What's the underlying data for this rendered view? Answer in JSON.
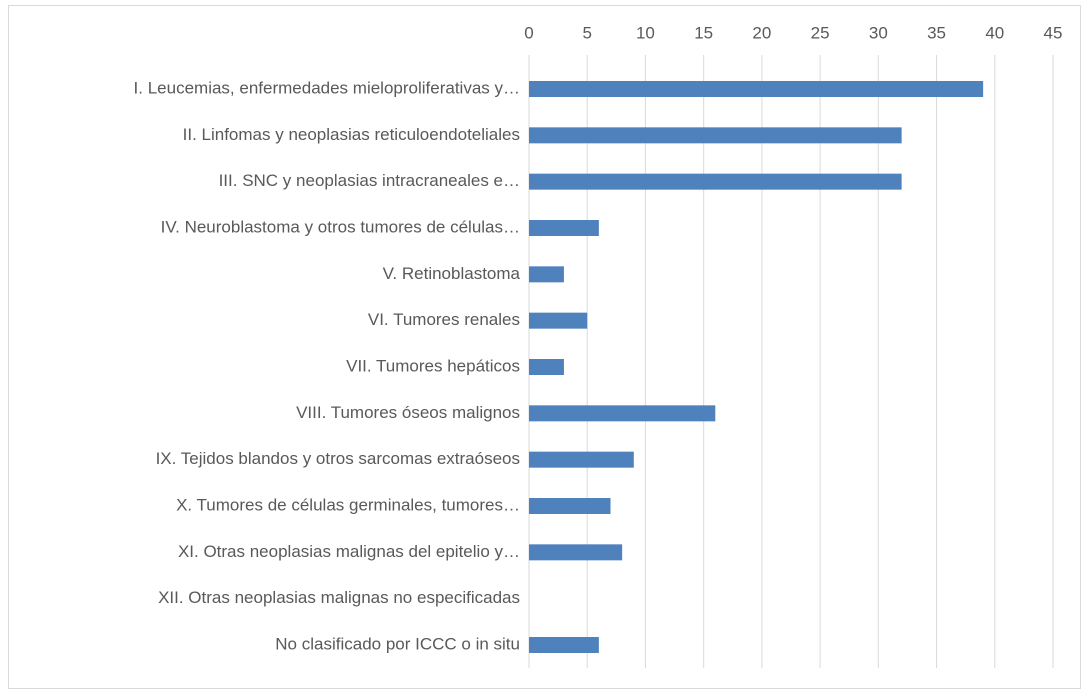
{
  "chart_data": {
    "type": "barh",
    "categories": [
      "I. Leucemias, enfermedades mieloproliferativas y…",
      "II. Linfomas y neoplasias reticuloendoteliales",
      "III. SNC y neoplasias intracraneales e…",
      "IV. Neuroblastoma y otros tumores de células…",
      "V. Retinoblastoma",
      "VI. Tumores renales",
      "VII. Tumores hepáticos",
      "VIII. Tumores óseos malignos",
      "IX. Tejidos blandos y otros sarcomas extraóseos",
      "X. Tumores de células germinales, tumores…",
      "XI. Otras neoplasias malignas del epitelio y…",
      "XII. Otras neoplasias malignas no especificadas",
      "No clasificado por ICCC o in situ"
    ],
    "values": [
      39,
      32,
      32,
      6,
      3,
      5,
      3,
      16,
      9,
      7,
      8,
      0,
      6
    ],
    "color": "#4f81bd",
    "xlim": [
      0,
      45
    ],
    "xticks": [
      0,
      5,
      10,
      15,
      20,
      25,
      30,
      35,
      40,
      45
    ],
    "grid": true
  }
}
